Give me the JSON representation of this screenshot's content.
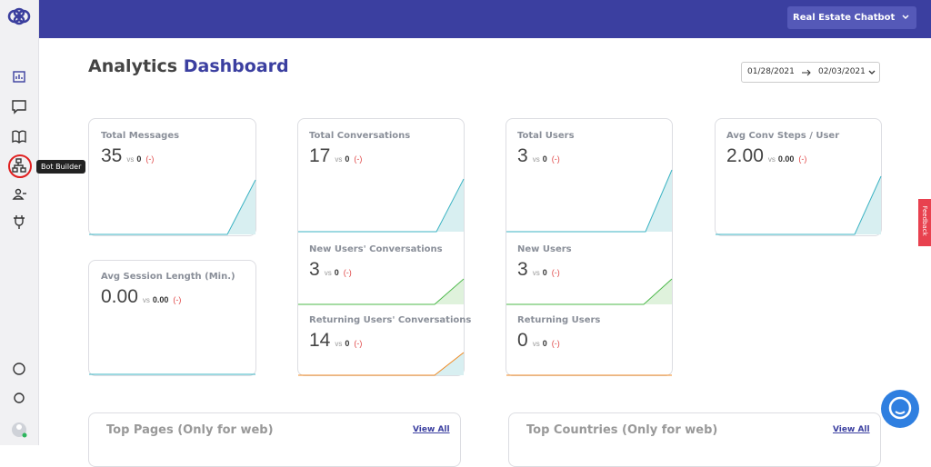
{
  "header": {
    "bot_selector": "Real Estate Chatbot"
  },
  "sidebar": {
    "tooltip": "Bot Builder"
  },
  "title": {
    "first": "Analytics",
    "second": "Dashboard"
  },
  "date_range": {
    "start": "01/28/2021",
    "end": "02/03/2021"
  },
  "cards": [
    {
      "label": "Total Messages",
      "value": "35",
      "vs_label": "vs",
      "vs_value": "0",
      "change": "(-)"
    },
    {
      "label": "Total Conversations",
      "value": "17",
      "vs_label": "vs",
      "vs_value": "0",
      "change": "(-)"
    },
    {
      "label": "Total Users",
      "value": "3",
      "vs_label": "vs",
      "vs_value": "0",
      "change": "(-)"
    },
    {
      "label": "Avg Conv Steps / User",
      "value": "2.00",
      "vs_label": "vs",
      "vs_value": "0.00",
      "change": "(-)"
    },
    {
      "label": "Avg Session Length (Min.)",
      "value": "0.00",
      "vs_label": "vs",
      "vs_value": "0.00",
      "change": "(-)"
    },
    {
      "label": "New Users' Conversations",
      "value": "3",
      "vs_label": "vs",
      "vs_value": "0",
      "change": "(-)"
    },
    {
      "label": "Returning Users' Conversations",
      "value": "14",
      "vs_label": "vs",
      "vs_value": "0",
      "change": "(-)"
    },
    {
      "label": "New Users",
      "value": "3",
      "vs_label": "vs",
      "vs_value": "0",
      "change": "(-)"
    },
    {
      "label": "Returning Users",
      "value": "0",
      "vs_label": "vs",
      "vs_value": "0",
      "change": "(-)"
    }
  ],
  "panels": [
    {
      "title": "Top Pages (Only for web)",
      "link": "View All"
    },
    {
      "title": "Top Countries (Only for web)",
      "link": "View All"
    }
  ],
  "feedback": "Feedback"
}
